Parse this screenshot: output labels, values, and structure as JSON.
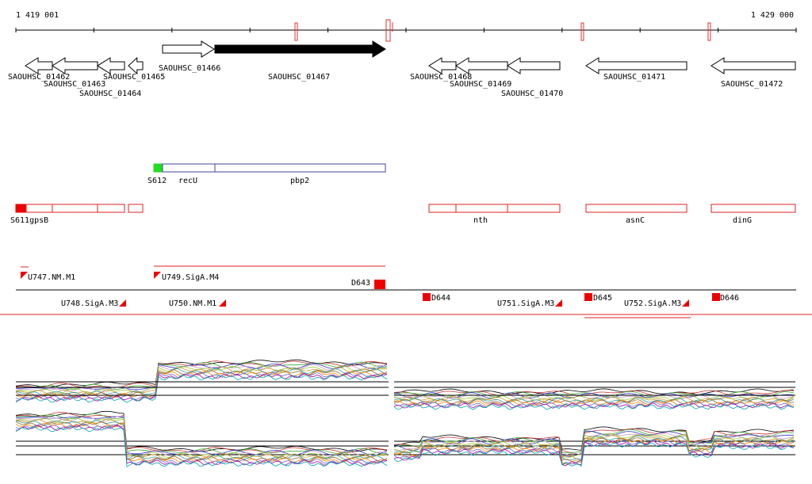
{
  "coordinates": {
    "start": "1 419 001",
    "end": "1 429 000"
  },
  "genes": [
    "SAOUHSC_01462",
    "SAOUHSC_01463",
    "SAOUHSC_01464",
    "SAOUHSC_01465",
    "SAOUHSC_01466",
    "SAOUHSC_01467",
    "SAOUHSC_01468",
    "SAOUHSC_01469",
    "SAOUHSC_01470",
    "SAOUHSC_01471",
    "SAOUHSC_01472"
  ],
  "gene_symbols": [
    "S612",
    "recU",
    "pbp2",
    "S611gpsB",
    "nth",
    "asnC",
    "dinG"
  ],
  "regulatory": [
    "U747.NM.M1",
    "U749.SigA.M4",
    "D643",
    "U748.SigA.M3",
    "U750.NM.M1",
    "D644",
    "U751.SigA.M3",
    "D645",
    "U752.SigA.M3",
    "D646"
  ]
}
